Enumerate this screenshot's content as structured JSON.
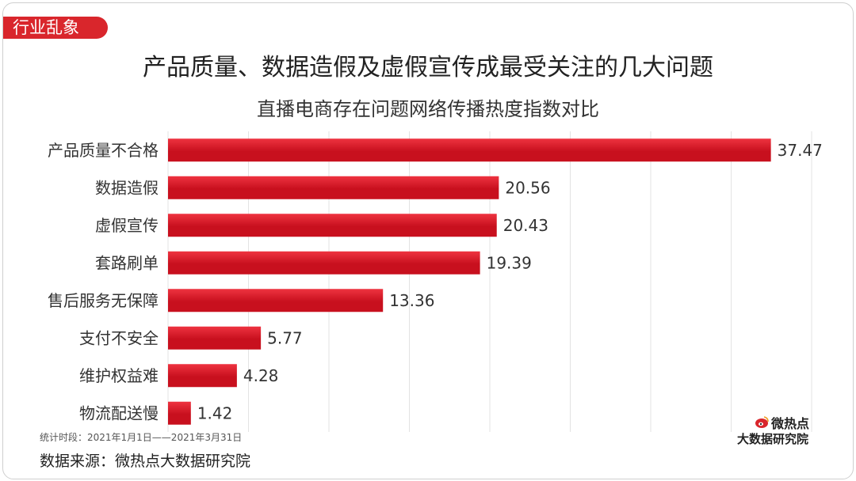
{
  "header": {
    "tag": "行业乱象",
    "title": "产品质量、数据造假及虚假宣传成最受关注的几大问题"
  },
  "chart_data": {
    "type": "bar",
    "orientation": "horizontal",
    "title": "直播电商存在问题网络传播热度指数对比",
    "categories": [
      "产品质量不合格",
      "数据造假",
      "虚假宣传",
      "套路刷单",
      "售后服务无保障",
      "支付不安全",
      "维护权益难",
      "物流配送慢"
    ],
    "values": [
      37.47,
      20.56,
      20.43,
      19.39,
      13.36,
      5.77,
      4.28,
      1.42
    ],
    "value_labels": [
      "37.47",
      "20.56",
      "20.43",
      "19.39",
      "13.36",
      "5.77",
      "4.28",
      "1.42"
    ],
    "xlim": [
      0,
      40
    ],
    "grid": "vertical",
    "bar_color": "#c8101e",
    "bar_color_light": "#ee3340"
  },
  "footer": {
    "period": "统计时段：2021年1月1日——2021年3月31日",
    "source": "数据来源：微热点大数据研究院",
    "logo_name": "微热点",
    "logo_sub": "大数据研究院"
  },
  "colors": {
    "accent": "#d9262c"
  }
}
